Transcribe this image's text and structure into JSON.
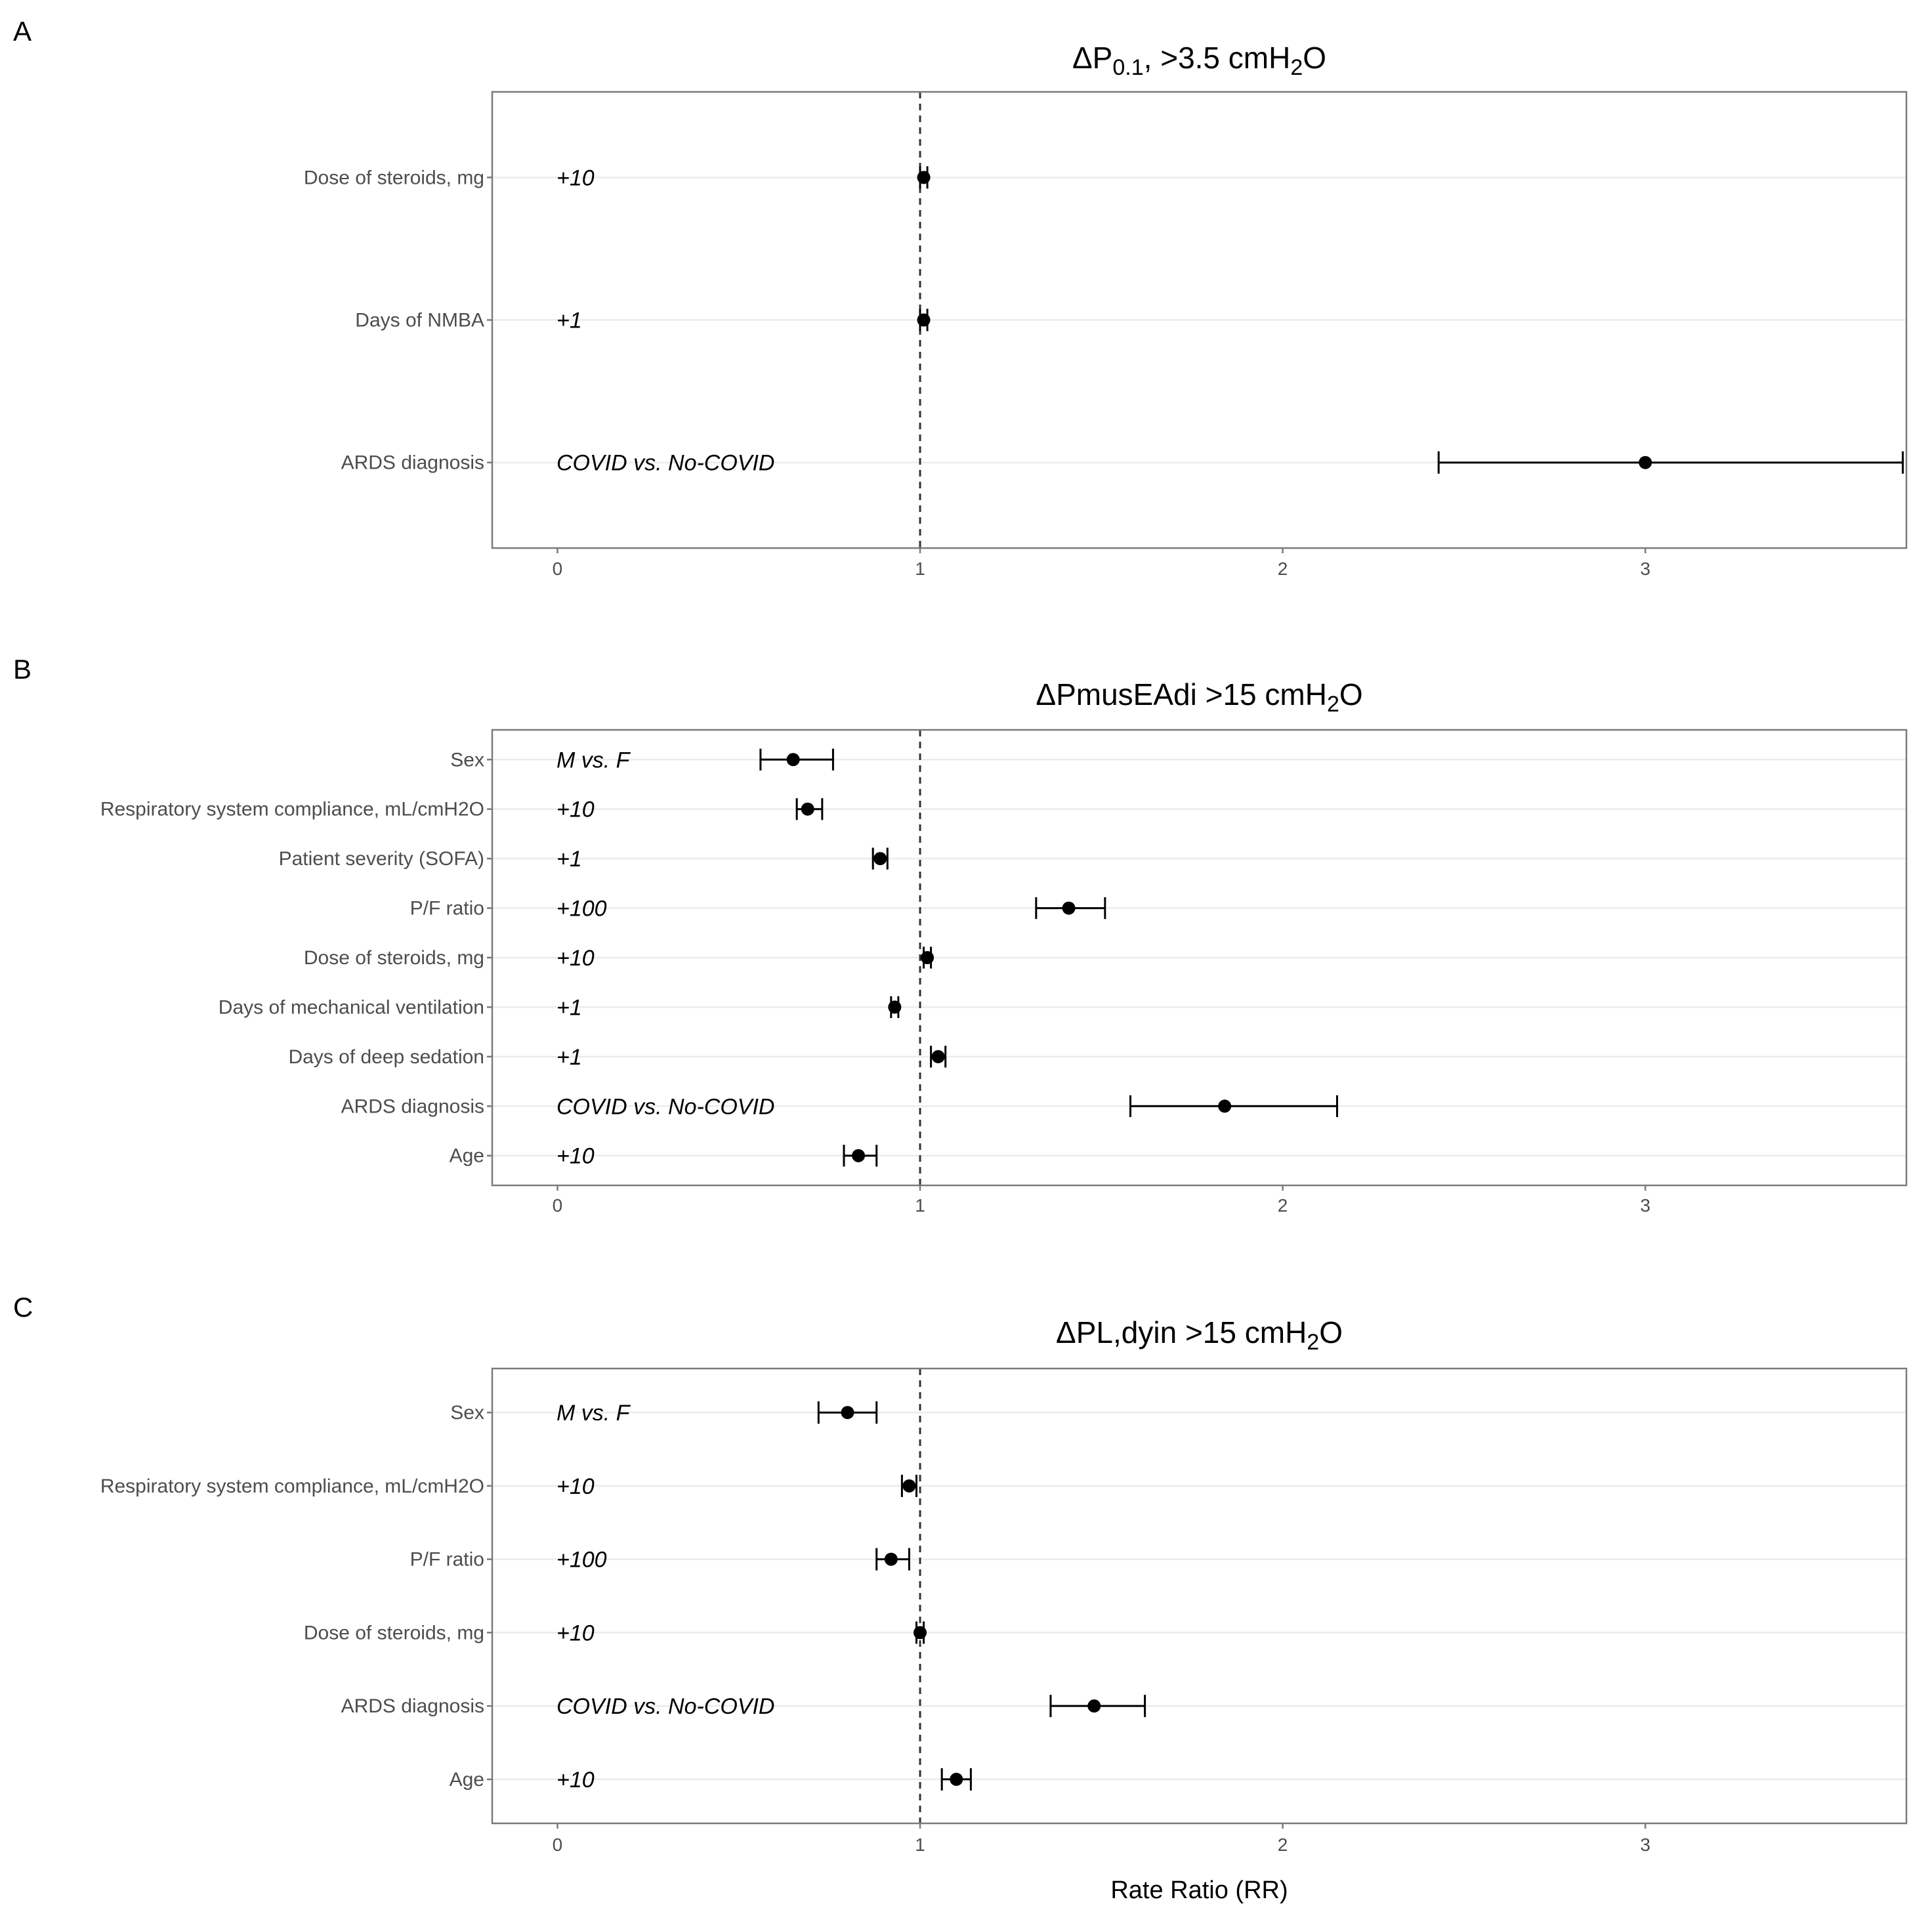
{
  "panels": [
    {
      "letter": "A",
      "title": {
        "parts": [
          {
            "text": "ΔP"
          },
          {
            "text": "0.1",
            "sub": true
          },
          {
            "text": ", >3.5 cmH"
          },
          {
            "text": "2",
            "sub": true
          },
          {
            "text": "O"
          }
        ]
      }
    },
    {
      "letter": "B",
      "title": {
        "parts": [
          {
            "text": "ΔPmusEAdi >15 cmH"
          },
          {
            "text": "2",
            "sub": true
          },
          {
            "text": "O"
          }
        ]
      }
    },
    {
      "letter": "C",
      "title": {
        "parts": [
          {
            "text": "ΔPL,dyin >15 cmH"
          },
          {
            "text": "2",
            "sub": true
          },
          {
            "text": "O"
          }
        ]
      }
    }
  ],
  "chart_data": [
    {
      "type": "forest",
      "panel": "A",
      "title": "ΔP0.1, >3.5 cmH2O",
      "xlim": [
        -0.18,
        3.72
      ],
      "x_ticks": [
        0,
        1,
        2,
        3
      ],
      "reference_line": 1,
      "rows": [
        {
          "label": "Dose of steroids, mg",
          "annotation": "+10",
          "estimate": 1.01,
          "lower": 1.0,
          "upper": 1.02
        },
        {
          "label": "Days of NMBA",
          "annotation": "+1",
          "estimate": 1.01,
          "lower": 1.0,
          "upper": 1.02
        },
        {
          "label": "ARDS diagnosis",
          "annotation": "COVID vs. No-COVID",
          "estimate": 3.0,
          "lower": 2.43,
          "upper": 3.71
        }
      ]
    },
    {
      "type": "forest",
      "panel": "B",
      "title": "ΔPmusEAdi >15 cmH2O",
      "xlim": [
        -0.18,
        3.72
      ],
      "x_ticks": [
        0,
        1,
        2,
        3
      ],
      "reference_line": 1,
      "rows": [
        {
          "label": "Sex",
          "annotation": "M vs. F",
          "estimate": 0.65,
          "lower": 0.56,
          "upper": 0.76
        },
        {
          "label": "Respiratory system compliance, mL/cmH2O",
          "annotation": "+10",
          "estimate": 0.69,
          "lower": 0.66,
          "upper": 0.73
        },
        {
          "label": "Patient severity (SOFA)",
          "annotation": "+1",
          "estimate": 0.89,
          "lower": 0.87,
          "upper": 0.91
        },
        {
          "label": "P/F ratio",
          "annotation": "+100",
          "estimate": 1.41,
          "lower": 1.32,
          "upper": 1.51
        },
        {
          "label": "Dose of steroids, mg",
          "annotation": "+10",
          "estimate": 1.02,
          "lower": 1.01,
          "upper": 1.03
        },
        {
          "label": "Days of mechanical ventilation",
          "annotation": "+1",
          "estimate": 0.93,
          "lower": 0.92,
          "upper": 0.94
        },
        {
          "label": "Days of deep sedation",
          "annotation": "+1",
          "estimate": 1.05,
          "lower": 1.03,
          "upper": 1.07
        },
        {
          "label": "ARDS diagnosis",
          "annotation": "COVID vs. No-COVID",
          "estimate": 1.84,
          "lower": 1.58,
          "upper": 2.15
        },
        {
          "label": "Age",
          "annotation": "+10",
          "estimate": 0.83,
          "lower": 0.79,
          "upper": 0.88
        }
      ]
    },
    {
      "type": "forest",
      "panel": "C",
      "title": "ΔPL,dyin >15 cmH2O",
      "xlim": [
        -0.18,
        3.72
      ],
      "x_ticks": [
        0,
        1,
        2,
        3
      ],
      "reference_line": 1,
      "xlabel": "Rate Ratio (RR)",
      "rows": [
        {
          "label": "Sex",
          "annotation": "M vs. F",
          "estimate": 0.8,
          "lower": 0.72,
          "upper": 0.88
        },
        {
          "label": "Respiratory system compliance, mL/cmH2O",
          "annotation": "+10",
          "estimate": 0.97,
          "lower": 0.95,
          "upper": 0.99
        },
        {
          "label": "P/F ratio",
          "annotation": "+100",
          "estimate": 0.92,
          "lower": 0.88,
          "upper": 0.97
        },
        {
          "label": "Dose of steroids, mg",
          "annotation": "+10",
          "estimate": 1.0,
          "lower": 0.99,
          "upper": 1.01
        },
        {
          "label": "ARDS diagnosis",
          "annotation": "COVID vs. No-COVID",
          "estimate": 1.48,
          "lower": 1.36,
          "upper": 1.62
        },
        {
          "label": "Age",
          "annotation": "+10",
          "estimate": 1.1,
          "lower": 1.06,
          "upper": 1.14
        }
      ]
    }
  ]
}
